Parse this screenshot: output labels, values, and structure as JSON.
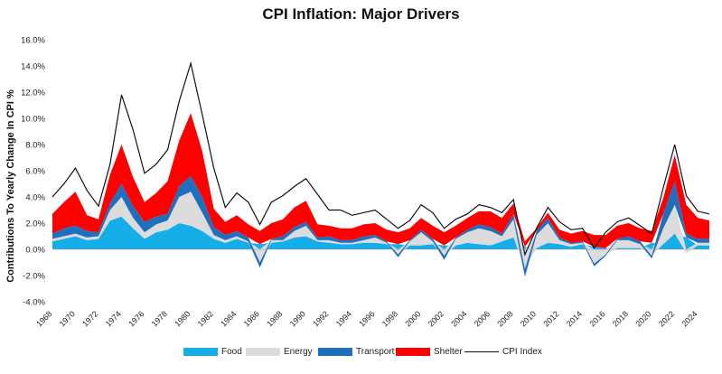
{
  "title": "CPI Inflation: Major Drivers",
  "chart_data": {
    "type": "area",
    "title": "CPI Inflation: Major Drivers",
    "ylabel": "Contributions To Yearly Change In CPI %",
    "xlabel": "",
    "ylim": [
      -4,
      16
    ],
    "yticks": [
      -4,
      -2,
      0,
      2,
      4,
      6,
      8,
      10,
      12,
      14,
      16
    ],
    "ytick_labels": [
      "-4.0%",
      "-2.0%",
      "0.0%",
      "2.0%",
      "4.0%",
      "6.0%",
      "8.0%",
      "10.0%",
      "12.0%",
      "14.0%",
      "16.0%"
    ],
    "xlim": [
      1968,
      2025
    ],
    "xticks": [
      1968,
      1970,
      1972,
      1974,
      1976,
      1978,
      1980,
      1982,
      1984,
      1986,
      1988,
      1990,
      1992,
      1994,
      1996,
      1998,
      2000,
      2002,
      2004,
      2006,
      2008,
      2010,
      2012,
      2014,
      2016,
      2018,
      2020,
      2022,
      2024
    ],
    "xtick_labels": [
      "1968",
      "1970",
      "1972",
      "1974",
      "1976",
      "1978",
      "1980",
      "1982",
      "1984",
      "1986",
      "1988",
      "1990",
      "1992",
      "1994",
      "1996",
      "1998",
      "2000",
      "2002",
      "2004",
      "2006",
      "2008",
      "2010",
      "2012",
      "2014",
      "2016",
      "2018",
      "2020",
      "2022",
      "2024"
    ],
    "grid": false,
    "stacked": true,
    "legend_position": "bottom",
    "x": [
      1968,
      1969,
      1970,
      1971,
      1972,
      1973,
      1974,
      1975,
      1976,
      1977,
      1978,
      1979,
      1980,
      1981,
      1982,
      1983,
      1984,
      1985,
      1986,
      1987,
      1988,
      1989,
      1990,
      1991,
      1992,
      1993,
      1994,
      1995,
      1996,
      1997,
      1998,
      1999,
      2000,
      2001,
      2002,
      2003,
      2004,
      2005,
      2006,
      2007,
      2008,
      2009,
      2010,
      2011,
      2012,
      2013,
      2014,
      2015,
      2016,
      2017,
      2018,
      2019,
      2020,
      2021,
      2022,
      2023,
      2024,
      2025
    ],
    "series": [
      {
        "name": "Food",
        "color": "#16aee8",
        "values": [
          0.6,
          0.8,
          1.0,
          0.7,
          0.8,
          2.2,
          2.5,
          1.6,
          0.8,
          1.3,
          1.5,
          2.0,
          1.8,
          1.4,
          0.8,
          0.5,
          0.8,
          0.5,
          0.4,
          0.5,
          0.6,
          0.9,
          1.0,
          0.6,
          0.5,
          0.4,
          0.4,
          0.5,
          0.5,
          0.4,
          0.4,
          0.3,
          0.3,
          0.4,
          0.3,
          0.3,
          0.5,
          0.4,
          0.3,
          0.6,
          0.9,
          0.2,
          0.1,
          0.5,
          0.4,
          0.2,
          0.4,
          0.2,
          0.1,
          0.1,
          0.1,
          0.1,
          0.5,
          0.4,
          1.2,
          0.9,
          0.3,
          0.3
        ]
      },
      {
        "name": "Energy",
        "color": "#dcdcdc",
        "values": [
          0.2,
          0.2,
          0.2,
          0.2,
          0.2,
          0.8,
          1.5,
          0.8,
          0.5,
          0.6,
          0.7,
          2.0,
          2.6,
          1.4,
          0.3,
          0.2,
          0.2,
          0.1,
          -1.0,
          0.2,
          0.1,
          0.5,
          0.8,
          0.1,
          0.2,
          0.1,
          0.1,
          0.2,
          0.4,
          0.1,
          -0.4,
          0.3,
          1.0,
          0.2,
          -0.5,
          0.5,
          0.8,
          1.2,
          1.1,
          0.4,
          1.4,
          -1.5,
          1.0,
          1.5,
          0.3,
          0.2,
          0.1,
          -1.1,
          -0.4,
          0.6,
          0.6,
          0.3,
          -0.5,
          1.2,
          2.2,
          -0.3,
          0.2,
          0.2
        ]
      },
      {
        "name": "Transport",
        "color": "#1f6fbf",
        "values": [
          0.4,
          0.6,
          0.6,
          0.5,
          0.3,
          0.5,
          1.0,
          0.9,
          0.8,
          0.6,
          0.5,
          0.8,
          1.2,
          1.2,
          0.6,
          0.4,
          0.4,
          0.3,
          -0.4,
          0.1,
          0.3,
          0.3,
          0.3,
          0.2,
          0.3,
          0.2,
          0.2,
          0.3,
          0.2,
          0.1,
          -0.2,
          0.1,
          0.2,
          0.2,
          -0.3,
          0.1,
          0.2,
          0.3,
          0.3,
          0.2,
          0.4,
          -0.6,
          0.3,
          0.4,
          0.2,
          0.1,
          0.1,
          -0.2,
          -0.1,
          0.1,
          0.3,
          0.2,
          -0.2,
          1.1,
          1.8,
          0.3,
          0.3,
          0.3
        ]
      },
      {
        "name": "Shelter",
        "color": "#ff0000",
        "values": [
          1.5,
          2.0,
          2.6,
          1.2,
          1.0,
          2.2,
          3.0,
          2.2,
          1.5,
          1.8,
          2.5,
          3.5,
          4.8,
          3.5,
          1.4,
          1.0,
          1.2,
          1.0,
          1.0,
          1.2,
          1.3,
          1.5,
          1.6,
          1.0,
          0.8,
          0.9,
          0.9,
          0.9,
          0.9,
          0.9,
          0.9,
          0.9,
          0.9,
          1.0,
          1.0,
          0.9,
          0.9,
          1.0,
          1.2,
          1.2,
          0.8,
          0.4,
          0.2,
          0.4,
          0.6,
          0.7,
          0.8,
          0.9,
          1.0,
          1.0,
          1.0,
          1.0,
          0.9,
          1.2,
          2.0,
          2.2,
          1.6,
          1.4
        ]
      },
      {
        "name": "CPI Index",
        "color": "#111111",
        "type": "line",
        "values": [
          4.0,
          5.0,
          6.2,
          4.5,
          3.3,
          6.5,
          11.8,
          9.1,
          5.8,
          6.5,
          7.6,
          11.3,
          14.2,
          10.3,
          6.2,
          3.2,
          4.3,
          3.6,
          1.9,
          3.6,
          4.1,
          4.8,
          5.4,
          4.2,
          3.0,
          3.0,
          2.6,
          2.8,
          3.0,
          2.3,
          1.6,
          2.2,
          3.4,
          2.8,
          1.6,
          2.3,
          2.7,
          3.4,
          3.2,
          2.8,
          3.8,
          -0.4,
          1.6,
          3.2,
          2.1,
          1.5,
          1.6,
          0.1,
          1.3,
          2.1,
          2.4,
          1.8,
          1.2,
          4.7,
          8.0,
          4.1,
          2.9,
          2.7
        ]
      }
    ]
  }
}
